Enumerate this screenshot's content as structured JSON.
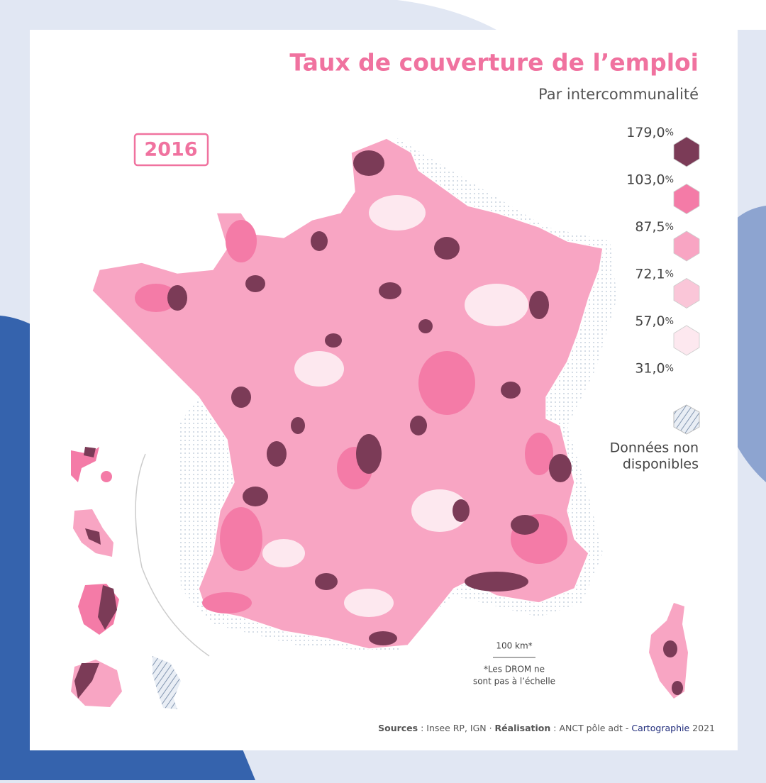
{
  "header": {
    "title": "Taux de couverture de l’emploi",
    "subtitle": "Par intercommunalité",
    "year": "2016"
  },
  "legend": {
    "breaks": [
      {
        "label": "179,0",
        "unit": "%"
      },
      {
        "label": "103,0",
        "unit": "%"
      },
      {
        "label": "87,5",
        "unit": "%"
      },
      {
        "label": "72,1",
        "unit": "%"
      },
      {
        "label": "57,0",
        "unit": "%"
      },
      {
        "label": "31,0",
        "unit": "%"
      }
    ],
    "colors": [
      "#7b3b57",
      "#f47ba7",
      "#f8a5c3",
      "#fac6d8",
      "#fde8ef"
    ],
    "no_data": [
      "Données non",
      "disponibles"
    ]
  },
  "scale": {
    "label": "100 km*",
    "note": [
      "*Les DROM ne",
      "sont pas à l’échelle"
    ]
  },
  "footer": {
    "sources_label": "Sources",
    "sources": " : Insee RP, IGN · ",
    "realisation_label": "Réalisation",
    "realisation": " : ANCT pôle adt - ",
    "cartographie": "Cartographie",
    "year": " 2021"
  }
}
